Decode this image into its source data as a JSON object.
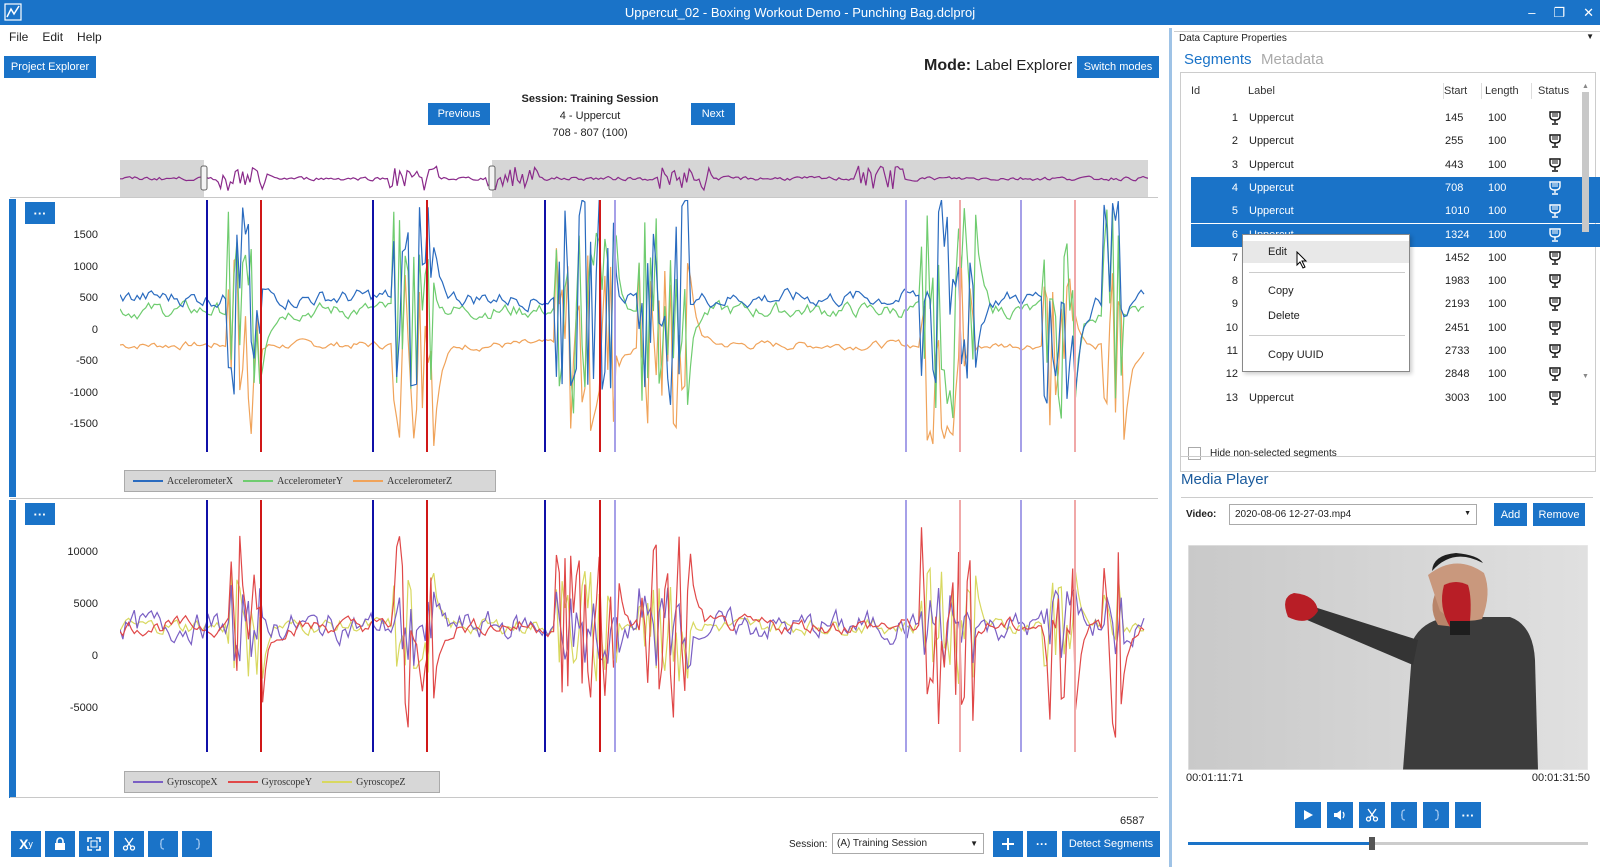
{
  "window": {
    "title": "Uppercut_02 - Boxing Workout Demo - Punching Bag.dclproj",
    "minimize_glyph": "–",
    "restore_glyph": "❐",
    "close_glyph": "✕"
  },
  "menu": [
    "File",
    "Edit",
    "Help"
  ],
  "toolbar": {
    "project_explorer": "Project Explorer",
    "mode_label": "Mode:",
    "mode_value": "Label Explorer",
    "switch_modes": "Switch modes"
  },
  "session_nav": {
    "previous": "Previous",
    "next": "Next",
    "session_title": "Session: Training Session",
    "segment_name": "4 - Uppercut",
    "segment_range": "708 - 807 (100)"
  },
  "accel_chart": {
    "yticks": [
      "1500",
      "1000",
      "500",
      "0",
      "-500",
      "-1000",
      "-1500"
    ],
    "legend": [
      "AccelerometerX",
      "AccelerometerY",
      "AccelerometerZ"
    ]
  },
  "gyro_chart": {
    "yticks": [
      "10000",
      "5000",
      "0",
      "-5000"
    ],
    "legend": [
      "GyroscopeX",
      "GyroscopeY",
      "GyroscopeZ"
    ]
  },
  "colors": {
    "accent": "#1a73c8",
    "accX": "#2a6bbf",
    "accY": "#6fcc6f",
    "accZ": "#f0a35a",
    "gyroX": "#7a5fc4",
    "gyroY": "#e04848",
    "gyroZ": "#d8d860",
    "overview": "#8a2a8a"
  },
  "bottom_bar": {
    "count": "6587",
    "session_label": "Session:",
    "session_value": "(A) Training Session",
    "detect_segments": "Detect Segments",
    "xy_label": "X",
    "xy_sub": "y"
  },
  "right_panel": {
    "header": "Data Capture Properties",
    "tab_segments": "Segments",
    "tab_metadata": "Metadata",
    "columns": [
      "Id",
      "Label",
      "Start",
      "Length",
      "Status"
    ],
    "rows": [
      {
        "id": "1",
        "label": "Uppercut",
        "start": "145",
        "length": "100",
        "selected": false
      },
      {
        "id": "2",
        "label": "Uppercut",
        "start": "255",
        "length": "100",
        "selected": false
      },
      {
        "id": "3",
        "label": "Uppercut",
        "start": "443",
        "length": "100",
        "selected": false
      },
      {
        "id": "4",
        "label": "Uppercut",
        "start": "708",
        "length": "100",
        "selected": true
      },
      {
        "id": "5",
        "label": "Uppercut",
        "start": "1010",
        "length": "100",
        "selected": true
      },
      {
        "id": "6",
        "label": "Uppercut",
        "start": "1324",
        "length": "100",
        "selected": true
      },
      {
        "id": "7",
        "label": "",
        "start": "1452",
        "length": "100",
        "selected": false
      },
      {
        "id": "8",
        "label": "",
        "start": "1983",
        "length": "100",
        "selected": false
      },
      {
        "id": "9",
        "label": "",
        "start": "2193",
        "length": "100",
        "selected": false
      },
      {
        "id": "10",
        "label": "",
        "start": "2451",
        "length": "100",
        "selected": false
      },
      {
        "id": "11",
        "label": "",
        "start": "2733",
        "length": "100",
        "selected": false
      },
      {
        "id": "12",
        "label": "",
        "start": "2848",
        "length": "100",
        "selected": false
      },
      {
        "id": "13",
        "label": "Uppercut",
        "start": "3003",
        "length": "100",
        "selected": false
      }
    ],
    "context_menu": [
      "Edit",
      "Copy",
      "Delete",
      "Copy UUID"
    ],
    "hide_nonselected": "Hide non-selected segments",
    "media_player": "Media Player",
    "video_label": "Video:",
    "video_value": "2020-08-06 12-27-03.mp4",
    "add": "Add",
    "remove": "Remove",
    "time_current": "00:01:11:71",
    "time_total": "00:01:31:50",
    "scrubber_value": 0.46
  }
}
